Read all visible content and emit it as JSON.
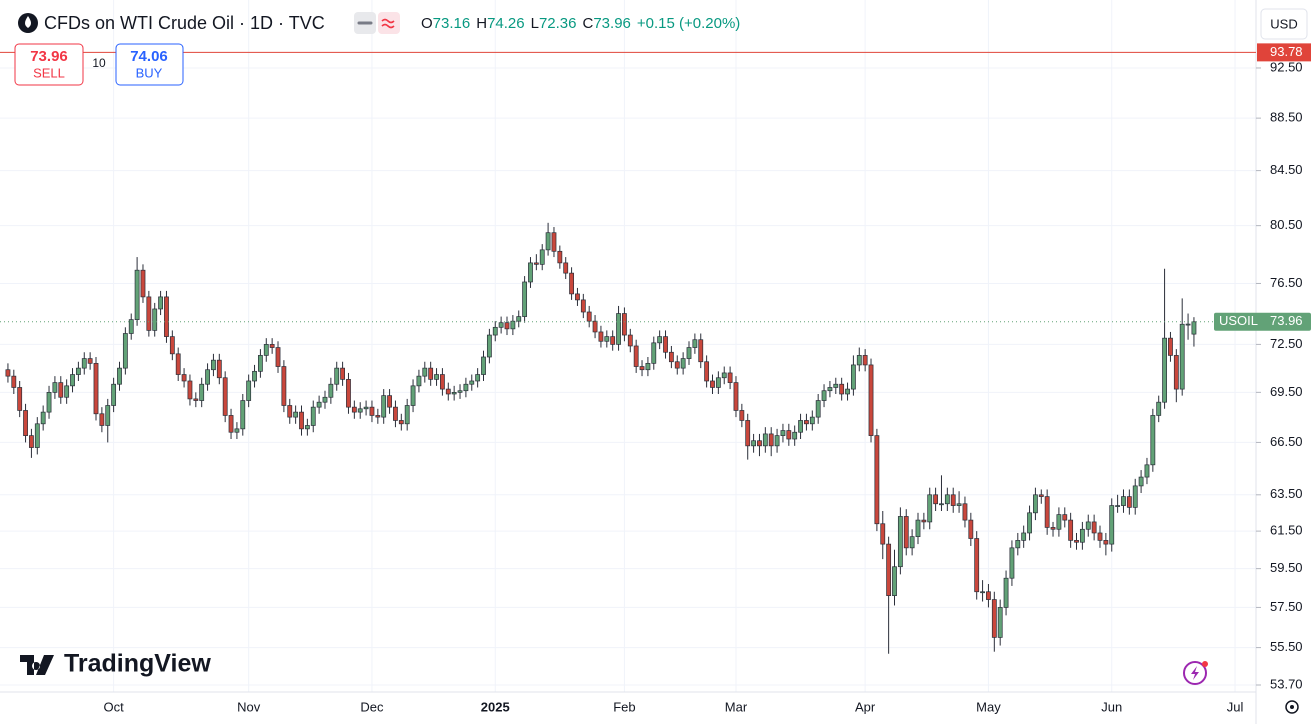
{
  "chart_data": {
    "type": "candlestick",
    "title": "CFDs on WTI Crude Oil · 1D · TVC",
    "legend": [
      {
        "key": "O",
        "value": 73.16
      },
      {
        "key": "H",
        "value": 74.26
      },
      {
        "key": "L",
        "value": 72.36
      },
      {
        "key": "C",
        "value": 73.96
      }
    ],
    "change": "+0.15 (+0.20%)",
    "sell": {
      "price": 73.96,
      "label": "SELL"
    },
    "buy": {
      "price": 74.06,
      "label": "BUY"
    },
    "quantity": 10,
    "currency": "USD",
    "brand": "TradingView",
    "log_scale": true,
    "grid": true,
    "up_color": "#62a277",
    "down_color": "#c9473c",
    "price_line": {
      "value": 93.78,
      "color": "#e0443a"
    },
    "last_price": {
      "name": "USOIL",
      "value": 73.96,
      "color": "#62a277"
    },
    "ylim": [
      53.37,
      97.52
    ],
    "yticks": [
      {
        "value": 92.5,
        "label": "92.50"
      },
      {
        "value": 88.5,
        "label": "88.50"
      },
      {
        "value": 84.5,
        "label": "84.50"
      },
      {
        "value": 80.5,
        "label": "80.50"
      },
      {
        "value": 76.5,
        "label": "76.50"
      },
      {
        "value": 72.5,
        "label": "72.50"
      },
      {
        "value": 69.5,
        "label": "69.50"
      },
      {
        "value": 66.5,
        "label": "66.50"
      },
      {
        "value": 63.5,
        "label": "63.50"
      },
      {
        "value": 61.5,
        "label": "61.50"
      },
      {
        "value": 59.5,
        "label": "59.50"
      },
      {
        "value": 57.5,
        "label": "57.50"
      },
      {
        "value": 55.5,
        "label": "55.50"
      },
      {
        "value": 53.7,
        "label": "53.70"
      }
    ],
    "xlim": [
      -0.5,
      212.4
    ],
    "xticks": [
      {
        "value": 18,
        "label": "Oct"
      },
      {
        "value": 41,
        "label": "Nov"
      },
      {
        "value": 62,
        "label": "Dec"
      },
      {
        "value": 83,
        "label": "2025"
      },
      {
        "value": 105,
        "label": "Feb"
      },
      {
        "value": 124,
        "label": "Mar"
      },
      {
        "value": 146,
        "label": "Apr"
      },
      {
        "value": 167,
        "label": "May"
      },
      {
        "value": 188,
        "label": "Jun"
      },
      {
        "value": 209,
        "label": "Jul"
      }
    ],
    "ohlc": [
      [
        70.9,
        71.3,
        70.1,
        70.5
      ],
      [
        70.5,
        70.9,
        69.4,
        69.8
      ],
      [
        69.8,
        70.2,
        68.0,
        68.4
      ],
      [
        68.4,
        68.8,
        66.5,
        66.9
      ],
      [
        66.9,
        67.3,
        65.6,
        66.2
      ],
      [
        66.2,
        68.0,
        65.8,
        67.6
      ],
      [
        67.6,
        68.7,
        67.2,
        68.3
      ],
      [
        68.3,
        69.9,
        67.9,
        69.5
      ],
      [
        69.5,
        70.5,
        69.1,
        70.1
      ],
      [
        70.1,
        70.5,
        68.8,
        69.2
      ],
      [
        69.2,
        70.3,
        68.8,
        69.9
      ],
      [
        69.9,
        71.0,
        69.5,
        70.6
      ],
      [
        70.6,
        71.4,
        70.2,
        71.0
      ],
      [
        71.0,
        72.0,
        70.6,
        71.6
      ],
      [
        71.6,
        72.0,
        70.9,
        71.3
      ],
      [
        71.3,
        71.7,
        67.8,
        68.2
      ],
      [
        68.2,
        68.6,
        67.1,
        67.5
      ],
      [
        67.5,
        69.1,
        66.5,
        68.7
      ],
      [
        68.7,
        70.4,
        68.3,
        70.0
      ],
      [
        70.0,
        71.4,
        69.6,
        71.0
      ],
      [
        71.0,
        73.6,
        70.6,
        73.2
      ],
      [
        73.2,
        74.5,
        72.8,
        74.1
      ],
      [
        74.1,
        78.3,
        73.7,
        77.4
      ],
      [
        77.4,
        77.8,
        75.2,
        75.6
      ],
      [
        75.6,
        76.0,
        73.0,
        73.4
      ],
      [
        73.4,
        75.2,
        73.0,
        74.8
      ],
      [
        74.8,
        76.0,
        74.4,
        75.6
      ],
      [
        75.6,
        76.0,
        72.6,
        73.0
      ],
      [
        73.0,
        73.4,
        71.5,
        71.9
      ],
      [
        71.9,
        72.3,
        70.2,
        70.6
      ],
      [
        70.6,
        71.0,
        69.8,
        70.2
      ],
      [
        70.2,
        70.6,
        68.7,
        69.1
      ],
      [
        69.1,
        69.5,
        68.6,
        69.0
      ],
      [
        69.0,
        70.4,
        68.6,
        70.0
      ],
      [
        70.0,
        71.3,
        69.6,
        70.9
      ],
      [
        70.9,
        71.9,
        70.5,
        71.5
      ],
      [
        71.5,
        71.9,
        70.0,
        70.4
      ],
      [
        70.4,
        70.8,
        67.7,
        68.1
      ],
      [
        68.1,
        68.5,
        66.7,
        67.1
      ],
      [
        67.1,
        67.7,
        66.7,
        67.3
      ],
      [
        67.3,
        69.4,
        66.9,
        69.0
      ],
      [
        69.0,
        70.6,
        68.6,
        70.2
      ],
      [
        70.2,
        71.2,
        69.8,
        70.8
      ],
      [
        70.8,
        72.2,
        70.4,
        71.8
      ],
      [
        71.8,
        72.9,
        71.4,
        72.5
      ],
      [
        72.5,
        72.9,
        71.9,
        72.3
      ],
      [
        72.3,
        72.7,
        70.7,
        71.1
      ],
      [
        71.1,
        71.5,
        68.3,
        68.7
      ],
      [
        68.7,
        69.1,
        67.6,
        68.0
      ],
      [
        68.0,
        68.7,
        67.6,
        68.3
      ],
      [
        68.3,
        68.7,
        66.9,
        67.3
      ],
      [
        67.3,
        67.9,
        66.9,
        67.5
      ],
      [
        67.5,
        69.0,
        67.1,
        68.6
      ],
      [
        68.6,
        69.3,
        68.2,
        68.9
      ],
      [
        68.9,
        69.6,
        68.5,
        69.2
      ],
      [
        69.2,
        70.4,
        68.8,
        70.0
      ],
      [
        70.0,
        71.4,
        69.6,
        71.0
      ],
      [
        71.0,
        71.4,
        69.9,
        70.3
      ],
      [
        70.3,
        70.7,
        68.2,
        68.6
      ],
      [
        68.6,
        69.0,
        67.9,
        68.3
      ],
      [
        68.3,
        68.9,
        67.9,
        68.5
      ],
      [
        68.5,
        69.0,
        68.1,
        68.6
      ],
      [
        68.6,
        69.0,
        67.7,
        68.1
      ],
      [
        68.1,
        68.5,
        67.6,
        68.0
      ],
      [
        68.0,
        69.7,
        67.6,
        69.3
      ],
      [
        69.3,
        69.7,
        68.2,
        68.6
      ],
      [
        68.6,
        69.0,
        67.4,
        67.8
      ],
      [
        67.8,
        68.2,
        67.2,
        67.6
      ],
      [
        67.6,
        69.1,
        67.2,
        68.7
      ],
      [
        68.7,
        70.3,
        68.3,
        69.9
      ],
      [
        69.9,
        70.9,
        69.5,
        70.5
      ],
      [
        70.5,
        71.4,
        70.1,
        71.0
      ],
      [
        71.0,
        71.4,
        69.9,
        70.3
      ],
      [
        70.3,
        71.0,
        69.9,
        70.6
      ],
      [
        70.6,
        71.0,
        69.3,
        69.7
      ],
      [
        69.7,
        70.1,
        69.0,
        69.4
      ],
      [
        69.4,
        69.9,
        69.0,
        69.5
      ],
      [
        69.5,
        70.0,
        69.1,
        69.6
      ],
      [
        69.6,
        70.4,
        69.2,
        70.0
      ],
      [
        70.0,
        70.6,
        69.6,
        70.2
      ],
      [
        70.2,
        71.0,
        69.8,
        70.6
      ],
      [
        70.6,
        72.1,
        70.2,
        71.7
      ],
      [
        71.7,
        73.5,
        71.3,
        73.1
      ],
      [
        73.1,
        74.0,
        72.7,
        73.6
      ],
      [
        73.6,
        74.3,
        73.2,
        73.9
      ],
      [
        73.9,
        74.3,
        73.1,
        73.5
      ],
      [
        73.5,
        74.4,
        73.1,
        74.0
      ],
      [
        74.0,
        74.7,
        73.6,
        74.3
      ],
      [
        74.3,
        77.0,
        73.9,
        76.6
      ],
      [
        76.6,
        78.3,
        76.2,
        77.9
      ],
      [
        77.9,
        78.5,
        77.4,
        77.8
      ],
      [
        77.8,
        79.2,
        77.4,
        78.8
      ],
      [
        78.8,
        80.7,
        78.4,
        80.0
      ],
      [
        80.0,
        80.4,
        78.3,
        78.7
      ],
      [
        78.7,
        79.1,
        77.5,
        77.9
      ],
      [
        77.9,
        78.3,
        76.8,
        77.2
      ],
      [
        77.2,
        77.6,
        75.4,
        75.8
      ],
      [
        75.8,
        76.2,
        75.0,
        75.4
      ],
      [
        75.4,
        75.8,
        74.2,
        74.6
      ],
      [
        74.6,
        75.0,
        73.6,
        74.0
      ],
      [
        74.0,
        74.4,
        72.9,
        73.3
      ],
      [
        73.3,
        73.7,
        72.3,
        72.7
      ],
      [
        72.7,
        73.4,
        72.3,
        73.0
      ],
      [
        73.0,
        73.4,
        72.1,
        72.5
      ],
      [
        72.5,
        75.0,
        72.1,
        74.5
      ],
      [
        74.5,
        74.9,
        72.7,
        73.1
      ],
      [
        73.1,
        73.5,
        72.0,
        72.4
      ],
      [
        72.4,
        72.8,
        70.7,
        71.1
      ],
      [
        71.1,
        71.5,
        70.5,
        70.9
      ],
      [
        70.9,
        71.7,
        70.5,
        71.3
      ],
      [
        71.3,
        73.0,
        70.9,
        72.6
      ],
      [
        72.6,
        73.4,
        72.2,
        73.0
      ],
      [
        73.0,
        73.4,
        71.6,
        72.0
      ],
      [
        72.0,
        72.4,
        71.0,
        71.4
      ],
      [
        71.4,
        71.8,
        70.6,
        71.0
      ],
      [
        71.0,
        72.0,
        70.6,
        71.6
      ],
      [
        71.6,
        72.7,
        71.2,
        72.3
      ],
      [
        72.3,
        73.2,
        71.9,
        72.8
      ],
      [
        72.8,
        73.2,
        71.0,
        71.4
      ],
      [
        71.4,
        71.8,
        69.8,
        70.2
      ],
      [
        70.2,
        70.6,
        69.4,
        69.8
      ],
      [
        69.8,
        70.8,
        69.4,
        70.4
      ],
      [
        70.4,
        71.1,
        70.0,
        70.7
      ],
      [
        70.7,
        71.1,
        69.7,
        70.1
      ],
      [
        70.1,
        70.5,
        68.0,
        68.4
      ],
      [
        68.4,
        68.8,
        67.4,
        67.8
      ],
      [
        67.8,
        68.2,
        65.5,
        66.3
      ],
      [
        66.3,
        67.0,
        65.9,
        66.6
      ],
      [
        66.6,
        67.0,
        65.7,
        66.3
      ],
      [
        66.3,
        67.4,
        65.9,
        67.0
      ],
      [
        67.0,
        67.4,
        65.7,
        66.3
      ],
      [
        66.3,
        67.3,
        65.9,
        66.9
      ],
      [
        66.9,
        67.6,
        66.5,
        67.2
      ],
      [
        67.2,
        67.6,
        66.3,
        66.7
      ],
      [
        66.7,
        67.5,
        66.3,
        67.1
      ],
      [
        67.1,
        68.2,
        66.7,
        67.8
      ],
      [
        67.8,
        68.2,
        67.2,
        67.6
      ],
      [
        67.6,
        68.4,
        67.2,
        68.0
      ],
      [
        68.0,
        69.4,
        67.6,
        69.0
      ],
      [
        69.0,
        70.0,
        68.6,
        69.6
      ],
      [
        69.6,
        70.2,
        69.2,
        69.8
      ],
      [
        69.8,
        70.4,
        69.4,
        70.0
      ],
      [
        70.0,
        70.4,
        69.0,
        69.4
      ],
      [
        69.4,
        70.1,
        69.0,
        69.7
      ],
      [
        69.7,
        71.8,
        69.3,
        71.2
      ],
      [
        71.2,
        72.3,
        70.8,
        71.8
      ],
      [
        71.8,
        72.2,
        70.8,
        71.2
      ],
      [
        71.2,
        71.6,
        66.5,
        66.9
      ],
      [
        66.9,
        67.3,
        61.5,
        61.9
      ],
      [
        61.9,
        62.6,
        60.0,
        60.8
      ],
      [
        60.8,
        61.2,
        55.2,
        58.1
      ],
      [
        58.1,
        60.5,
        57.6,
        59.6
      ],
      [
        59.6,
        62.8,
        59.2,
        62.3
      ],
      [
        62.3,
        62.7,
        60.2,
        60.6
      ],
      [
        60.6,
        61.6,
        60.2,
        61.2
      ],
      [
        61.2,
        62.5,
        60.8,
        62.1
      ],
      [
        62.1,
        62.5,
        61.6,
        62.0
      ],
      [
        62.0,
        63.9,
        61.6,
        63.5
      ],
      [
        63.5,
        63.9,
        62.6,
        63.0
      ],
      [
        63.0,
        64.6,
        62.6,
        63.0
      ],
      [
        63.0,
        63.9,
        62.6,
        63.5
      ],
      [
        63.5,
        63.9,
        62.5,
        62.9
      ],
      [
        62.9,
        63.7,
        62.5,
        63.0
      ],
      [
        63.0,
        63.4,
        61.7,
        62.1
      ],
      [
        62.1,
        62.5,
        60.7,
        61.1
      ],
      [
        61.1,
        61.5,
        57.9,
        58.3
      ],
      [
        58.3,
        58.9,
        57.8,
        58.3
      ],
      [
        58.3,
        58.7,
        57.5,
        57.9
      ],
      [
        57.9,
        58.3,
        55.3,
        56.0
      ],
      [
        56.0,
        57.9,
        55.6,
        57.5
      ],
      [
        57.5,
        59.4,
        57.1,
        59.0
      ],
      [
        59.0,
        61.0,
        58.6,
        60.6
      ],
      [
        60.6,
        61.4,
        60.2,
        61.0
      ],
      [
        61.0,
        61.8,
        60.6,
        61.4
      ],
      [
        61.4,
        62.9,
        61.0,
        62.5
      ],
      [
        62.5,
        63.9,
        62.1,
        63.5
      ],
      [
        63.5,
        63.8,
        63.0,
        63.4
      ],
      [
        63.4,
        63.8,
        61.3,
        61.7
      ],
      [
        61.7,
        62.0,
        61.2,
        61.6
      ],
      [
        61.6,
        62.8,
        61.2,
        62.4
      ],
      [
        62.4,
        62.8,
        61.7,
        62.1
      ],
      [
        62.1,
        62.5,
        60.6,
        61.0
      ],
      [
        61.0,
        61.4,
        60.5,
        60.9
      ],
      [
        60.9,
        62.0,
        60.5,
        61.6
      ],
      [
        61.6,
        62.4,
        61.2,
        62.0
      ],
      [
        62.0,
        62.4,
        61.0,
        61.4
      ],
      [
        61.4,
        61.8,
        60.6,
        61.0
      ],
      [
        61.0,
        61.4,
        60.2,
        60.8
      ],
      [
        60.8,
        63.3,
        60.4,
        62.9
      ],
      [
        62.9,
        63.5,
        62.5,
        62.9
      ],
      [
        62.9,
        63.8,
        62.5,
        63.4
      ],
      [
        63.4,
        63.8,
        62.4,
        62.8
      ],
      [
        62.8,
        64.4,
        62.4,
        64.0
      ],
      [
        64.0,
        64.9,
        63.6,
        64.5
      ],
      [
        64.5,
        65.6,
        64.1,
        65.2
      ],
      [
        65.2,
        68.5,
        64.8,
        68.1
      ],
      [
        68.1,
        69.3,
        67.7,
        68.9
      ],
      [
        68.9,
        77.5,
        68.5,
        72.9
      ],
      [
        72.9,
        73.3,
        71.4,
        71.8
      ],
      [
        71.8,
        72.2,
        68.9,
        69.7
      ],
      [
        69.7,
        75.5,
        69.3,
        73.8
      ],
      [
        73.8,
        74.5,
        72.8,
        73.81
      ],
      [
        73.16,
        74.26,
        72.36,
        73.96
      ]
    ]
  }
}
